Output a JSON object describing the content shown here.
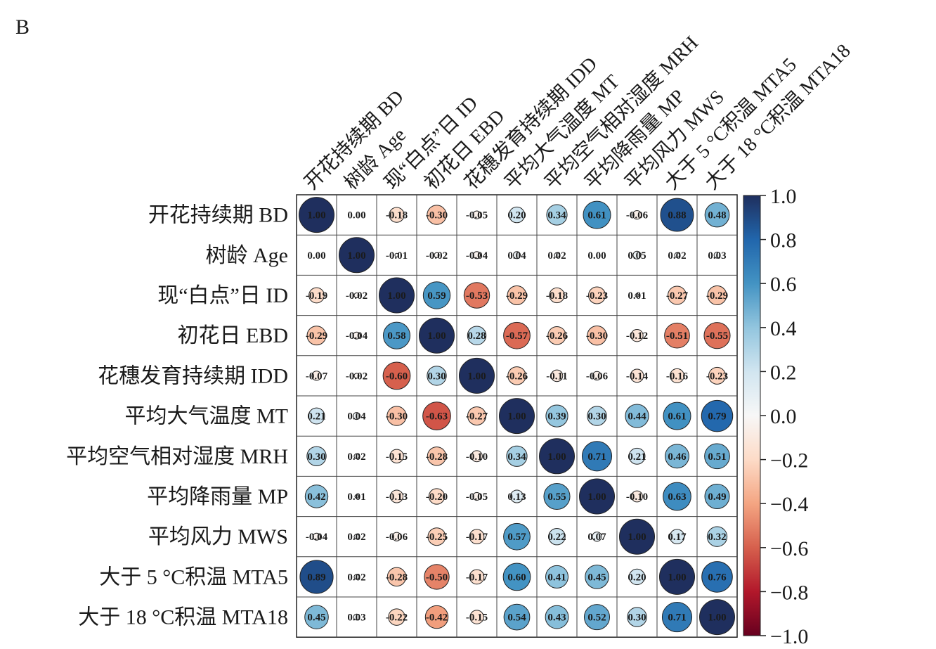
{
  "panel_label": "B",
  "chart_data": {
    "type": "heatmap",
    "variables": [
      "开花持续期 BD",
      "树龄 Age",
      "现“白点”日 ID",
      "初花日 EBD",
      "花穗发育持续期 IDD",
      "平均大气温度 MT",
      "平均空气相对湿度 MRH",
      "平均降雨量 MP",
      "平均风力 MWS",
      "大于 5 °C积温 MTA5",
      "大于 18 °C积温 MTA18"
    ],
    "values": [
      [
        1.0,
        0.0,
        -0.18,
        -0.3,
        -0.05,
        0.2,
        0.34,
        0.61,
        -0.06,
        0.88,
        0.48
      ],
      [
        0.0,
        1.0,
        -0.01,
        -0.02,
        -0.04,
        0.04,
        0.02,
        0.0,
        0.05,
        0.02,
        0.03
      ],
      [
        -0.19,
        -0.02,
        1.0,
        0.59,
        -0.53,
        -0.29,
        -0.18,
        -0.23,
        0.01,
        -0.27,
        -0.29
      ],
      [
        -0.29,
        -0.04,
        0.58,
        1.0,
        0.28,
        -0.57,
        -0.26,
        -0.3,
        -0.12,
        -0.51,
        -0.55
      ],
      [
        -0.07,
        -0.02,
        -0.6,
        0.3,
        1.0,
        -0.26,
        -0.11,
        -0.06,
        -0.14,
        -0.16,
        -0.23
      ],
      [
        0.21,
        0.04,
        -0.3,
        -0.63,
        -0.27,
        1.0,
        0.39,
        0.3,
        0.44,
        0.61,
        0.79
      ],
      [
        0.3,
        0.02,
        -0.15,
        -0.28,
        -0.1,
        0.34,
        1.0,
        0.71,
        0.21,
        0.46,
        0.51
      ],
      [
        0.42,
        0.01,
        -0.13,
        -0.2,
        -0.05,
        0.13,
        0.55,
        1.0,
        -0.1,
        0.63,
        0.49
      ],
      [
        -0.04,
        0.02,
        -0.06,
        -0.25,
        -0.17,
        0.57,
        0.22,
        0.07,
        1.0,
        0.17,
        0.32
      ],
      [
        0.89,
        0.02,
        -0.28,
        -0.5,
        -0.17,
        0.6,
        0.41,
        0.45,
        0.2,
        1.0,
        0.76
      ],
      [
        0.45,
        0.03,
        -0.22,
        -0.42,
        -0.15,
        0.54,
        0.43,
        0.52,
        0.3,
        0.71,
        1.0
      ]
    ],
    "marker": "circle",
    "value_format": "0.00",
    "colorbar": {
      "min": -1.0,
      "max": 1.0,
      "ticks": [
        "1.0",
        "0.8",
        "0.6",
        "0.4",
        "0.2",
        "0.0",
        "−0.2",
        "−0.4",
        "−0.6",
        "−0.8",
        "−1.0"
      ],
      "colors": {
        "neg": "#67001f",
        "mid": "#f7f7f7",
        "pos": "#1f2f5e"
      }
    }
  }
}
